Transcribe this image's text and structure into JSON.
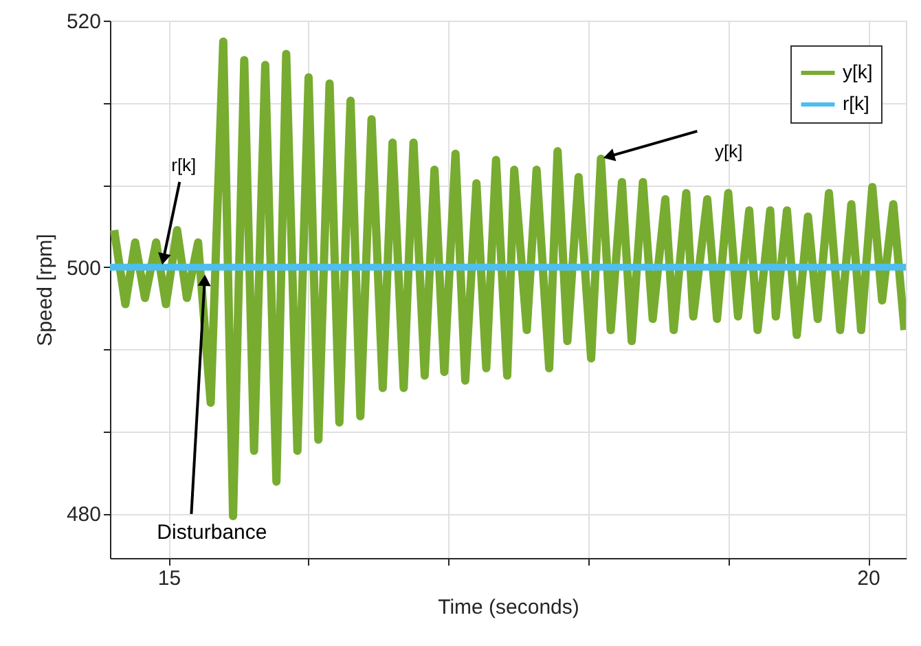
{
  "chart_data": {
    "type": "line",
    "xlabel": "Time (seconds)",
    "ylabel": "Speed [rpm]",
    "xlim": [
      14.58,
      20.27
    ],
    "ylim": [
      476.4,
      520
    ],
    "xticks": [
      15,
      {
        "value": 16,
        "label": null
      },
      {
        "value": 17,
        "label": null
      },
      {
        "value": 18,
        "label": null
      },
      {
        "value": 19,
        "label": null
      },
      20
    ],
    "yticks": [
      480,
      {
        "value": 486.67,
        "label": null
      },
      {
        "value": 493.33,
        "label": null
      },
      500,
      {
        "value": 506.67,
        "label": null
      },
      {
        "value": 513.33,
        "label": null
      },
      520
    ],
    "grid": true,
    "legend": "top right",
    "line_style": "solid",
    "marker": "none",
    "annotations": [
      {
        "text": "r[k]",
        "x": 14.95,
        "y": 500
      },
      {
        "text": "y[k]",
        "x": 18.09,
        "y": 508.8
      },
      {
        "text": "Disturbance",
        "x": 15.26,
        "y": 499.6
      }
    ],
    "series": [
      {
        "name": "y[k]",
        "color": "#77ac30",
        "x": [
          14.61,
          14.69,
          14.76,
          14.83,
          14.91,
          14.98,
          15.06,
          15.13,
          15.21,
          15.3,
          15.39,
          15.46,
          15.54,
          15.61,
          15.69,
          15.77,
          15.84,
          15.92,
          16.0,
          16.07,
          16.15,
          16.22,
          16.3,
          16.37,
          16.45,
          16.53,
          16.6,
          16.68,
          16.75,
          16.83,
          16.9,
          16.97,
          17.05,
          17.12,
          17.2,
          17.27,
          17.34,
          17.42,
          17.47,
          17.56,
          17.63,
          17.72,
          17.78,
          17.85,
          17.93,
          18.02,
          18.09,
          18.16,
          18.24,
          18.31,
          18.39,
          18.46,
          18.55,
          18.61,
          18.7,
          18.75,
          18.85,
          18.92,
          19.0,
          19.07,
          19.15,
          19.21,
          19.3,
          19.34,
          19.42,
          19.49,
          19.57,
          19.64,
          19.72,
          19.8,
          19.88,
          19.95,
          20.03,
          20.1,
          20.18,
          20.26
        ],
        "values": [
          503,
          497,
          502,
          497.5,
          502,
          497,
          503,
          497.5,
          502,
          489,
          518.3,
          479.8,
          516.8,
          485.1,
          516.4,
          482.6,
          517.3,
          485.1,
          515.4,
          486,
          514.9,
          487.4,
          513.5,
          487.9,
          512,
          490.2,
          510.1,
          490.2,
          510.1,
          491.2,
          507.9,
          491.5,
          509.2,
          490.8,
          506.8,
          491.8,
          508.7,
          491.2,
          507.9,
          494.9,
          507.9,
          491.8,
          509.4,
          494,
          507.3,
          492.6,
          508.8,
          494.9,
          506.9,
          494,
          506.9,
          495.8,
          505.5,
          494.9,
          506,
          496,
          505.5,
          495.8,
          506,
          496,
          504.6,
          494.9,
          504.6,
          496,
          504.6,
          494.5,
          504.1,
          495.8,
          506,
          494.9,
          505.1,
          494.9,
          506.5,
          497.3,
          505.1,
          494.9
        ]
      },
      {
        "name": "r[k]",
        "color": "#4dbeee",
        "x": [
          14.58,
          20.27
        ],
        "values": [
          500,
          500
        ]
      }
    ]
  }
}
